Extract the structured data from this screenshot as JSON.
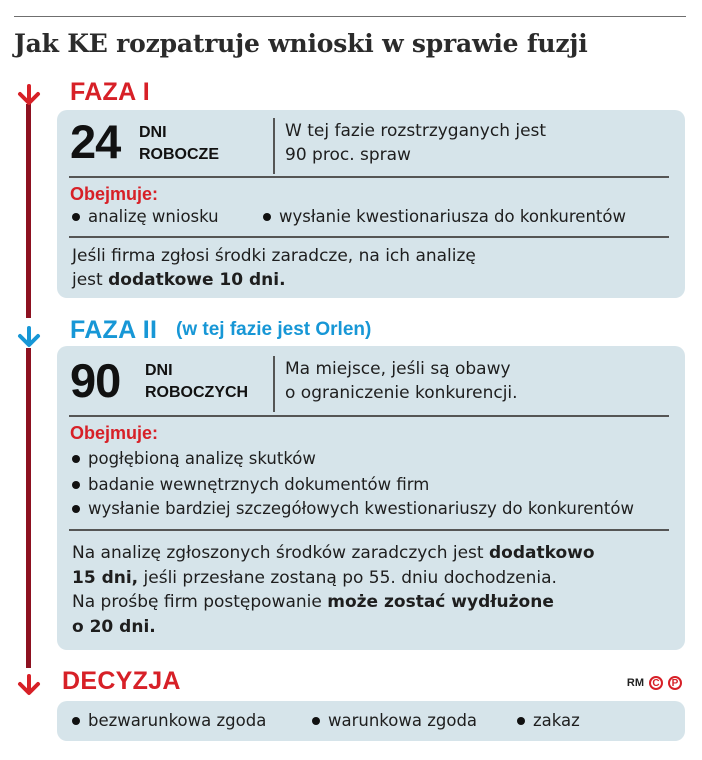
{
  "title": "Jak KE rozpatruje wnioski w sprawie fuzji",
  "colors": {
    "red": "#d72027",
    "dark_red_line": "#8d1120",
    "blue": "#1797d6",
    "box_bg": "#d6e4ea"
  },
  "phase1": {
    "label": "FAZA I",
    "number": "24",
    "unit_line1": "DNI",
    "unit_line2": "ROBOCZE",
    "desc_line1": "W tej fazie rozstrzyganych jest",
    "desc_line2": "90 proc. spraw",
    "includes_label": "Obejmuje:",
    "bullets": [
      "analizę wniosku",
      "wysłanie kwestionariusza do konkurentów"
    ],
    "note_line1": "Jeśli firma zgłosi środki zaradcze, na ich analizę",
    "note_line2_plain": "jest ",
    "note_line2_bold": "dodatkowe 10 dni."
  },
  "phase2": {
    "label": "FAZA II",
    "note": "(w tej fazie jest Orlen)",
    "number": "90",
    "unit_line1": "DNI",
    "unit_line2": "ROBOCZYCH",
    "desc_line1": "Ma miejsce, jeśli są obawy",
    "desc_line2": "o ograniczenie konkurencji.",
    "includes_label": "Obejmuje:",
    "bullets": [
      "pogłębioną analizę skutków",
      "badanie wewnętrznych dokumentów firm",
      "wysłanie bardziej szczegółowych kwestionariuszy do konkurentów"
    ],
    "p1_plain": "Na analizę zgłoszonych środków zaradczych jest ",
    "p1_bold": "dodatkowo",
    "p2_bold": "15 dni,",
    "p2_plain": " jeśli przesłane zostaną po 55. dniu dochodzenia.",
    "p3_plain": "Na prośbę firm postępowanie ",
    "p3_bold": "może zostać wydłużone",
    "p4_bold": "o 20 dni."
  },
  "decision": {
    "label": "DECYZJA",
    "options": [
      "bezwarunkowa zgoda",
      "warunkowa zgoda",
      "zakaz"
    ]
  },
  "credit": {
    "initials": "RM",
    "badge1": "C",
    "badge2": "P"
  },
  "icons": {
    "arrow_red": "down-arrow-icon",
    "arrow_blue": "down-arrow-icon"
  }
}
